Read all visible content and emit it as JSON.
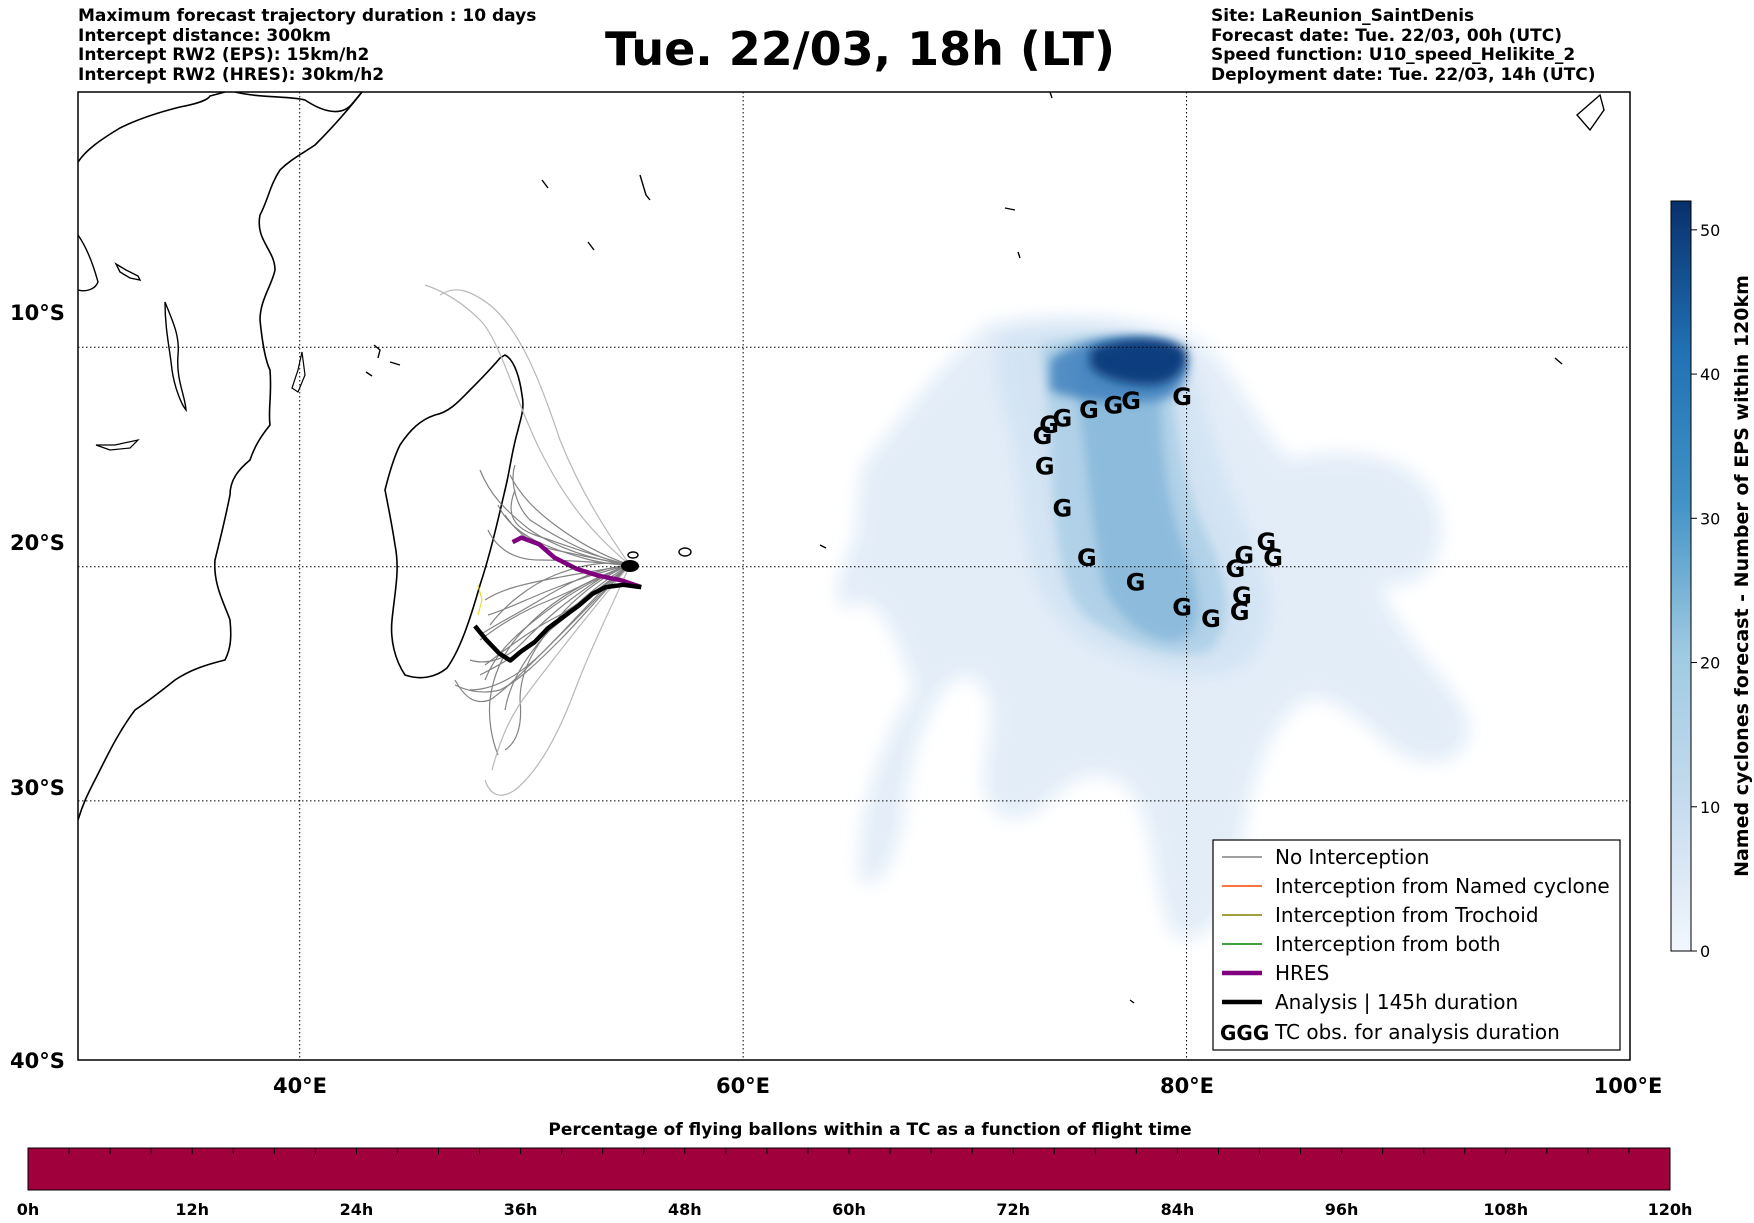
{
  "header": {
    "left_lines": [
      "Maximum forecast trajectory duration : 10 days",
      "Intercept distance: 300km",
      "Intercept RW2 (EPS):  15km/h2",
      "Intercept RW2 (HRES): 30km/h2"
    ],
    "title": "Tue. 22/03, 18h (LT)",
    "right_lines": [
      "Site: LaReunion_SaintDenis",
      "Forecast date: Tue. 22/03, 00h (UTC)",
      "Speed function: U10_speed_Helikite_2",
      "Deployment date: Tue. 22/03, 14h (UTC)"
    ]
  },
  "map": {
    "lat_labels": [
      "10°S",
      "20°S",
      "30°S",
      "40°S"
    ],
    "lon_labels": [
      "40°E",
      "60°E",
      "80°E",
      "100°E"
    ],
    "lon_range": [
      30,
      100
    ],
    "lat_range": [
      -40,
      2
    ],
    "gridline_lons": [
      40,
      60,
      80
    ],
    "gridline_lats": [
      -10,
      -20,
      -30
    ],
    "tc_symbol": "G",
    "tc_obs": [
      [
        79.8,
        -12.3
      ],
      [
        77.5,
        -12.5
      ],
      [
        76.7,
        -12.7
      ],
      [
        75.6,
        -12.9
      ],
      [
        74.4,
        -13.3
      ],
      [
        73.8,
        -13.6
      ],
      [
        73.5,
        -14.1
      ],
      [
        73.6,
        -15.5
      ],
      [
        74.4,
        -17.4
      ],
      [
        75.5,
        -19.6
      ],
      [
        77.7,
        -20.7
      ],
      [
        79.8,
        -21.8
      ],
      [
        81.1,
        -22.3
      ],
      [
        82.4,
        -22.0
      ],
      [
        82.5,
        -21.3
      ],
      [
        82.2,
        -20.1
      ],
      [
        82.6,
        -19.5
      ],
      [
        83.6,
        -18.9
      ],
      [
        83.9,
        -19.6
      ]
    ],
    "hres_track": [
      [
        55.4,
        -20.9
      ],
      [
        54.5,
        -20.6
      ],
      [
        53.5,
        -20.4
      ],
      [
        52.5,
        -20.1
      ],
      [
        51.5,
        -19.6
      ],
      [
        50.8,
        -19.0
      ],
      [
        50.0,
        -18.7
      ],
      [
        49.6,
        -18.9
      ]
    ],
    "analysis_track": [
      [
        55.4,
        -20.9
      ],
      [
        54.6,
        -20.8
      ],
      [
        53.8,
        -20.9
      ],
      [
        53.2,
        -21.2
      ],
      [
        52.6,
        -21.7
      ],
      [
        51.9,
        -22.2
      ],
      [
        51.2,
        -22.7
      ],
      [
        50.6,
        -23.3
      ],
      [
        50.0,
        -23.7
      ],
      [
        49.5,
        -24.1
      ],
      [
        49.0,
        -23.8
      ],
      [
        48.4,
        -23.2
      ],
      [
        47.9,
        -22.6
      ]
    ]
  },
  "legend": {
    "items": [
      {
        "label": "No Interception",
        "color": "#808080",
        "style": "thin"
      },
      {
        "label": "Interception from Named cyclone",
        "color": "#ff4500",
        "style": "thin"
      },
      {
        "label": "Interception from Trochoid",
        "color": "#808000",
        "style": "thin"
      },
      {
        "label": "Interception from both",
        "color": "#008000",
        "style": "thin"
      },
      {
        "label": "HRES",
        "color": "#800080",
        "style": "thick"
      },
      {
        "label": "Analysis | 145h duration",
        "color": "#000000",
        "style": "thick"
      },
      {
        "label": "TC obs. for analysis duration",
        "color": "#000000",
        "style": "symbol"
      }
    ],
    "symbol_text": "GGG"
  },
  "colorbar": {
    "title": "Named cyclones forecast - Number of EPS within 120km",
    "ticks": [
      "0",
      "10",
      "20",
      "30",
      "40",
      "50"
    ],
    "range": [
      0,
      52
    ],
    "colors": [
      "#e4eef8",
      "#08306b"
    ]
  },
  "bottom_bar": {
    "title": "Percentage of flying ballons within a TC as a function of flight time",
    "ticks": [
      "0h",
      "12h",
      "24h",
      "36h",
      "48h",
      "60h",
      "72h",
      "84h",
      "96h",
      "108h",
      "120h"
    ],
    "color": "#a0003c"
  }
}
